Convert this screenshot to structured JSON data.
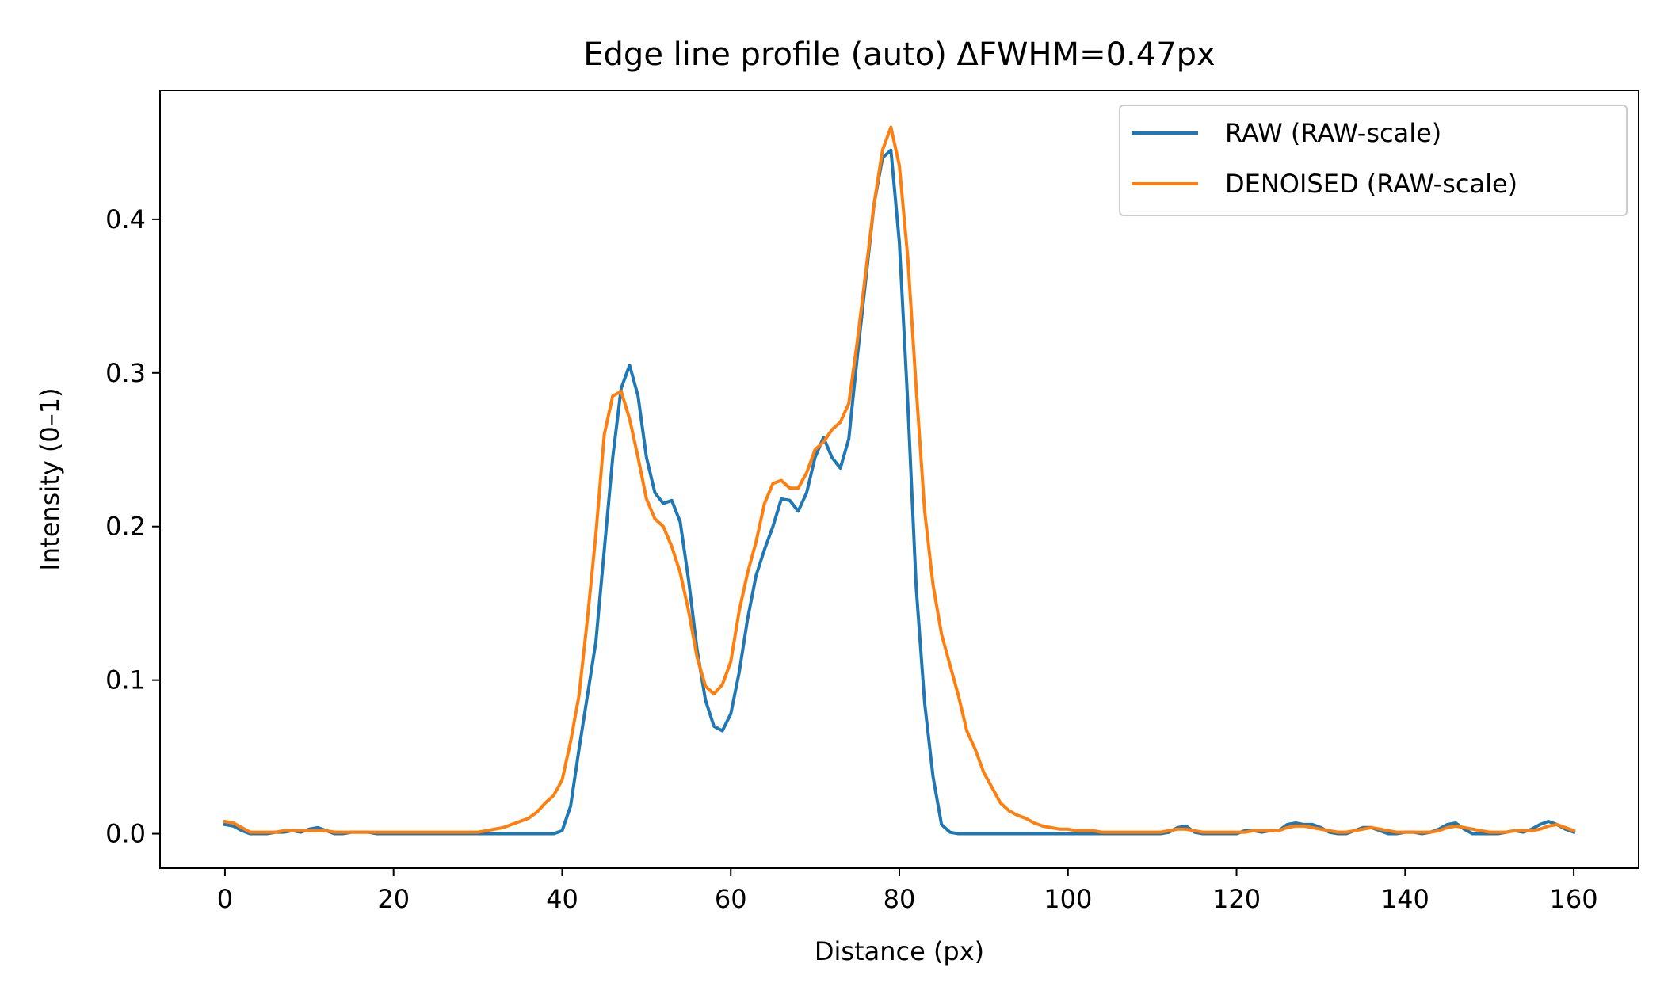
{
  "chart_data": {
    "type": "line",
    "title": "Edge line profile (auto)  ΔFWHM=0.47px",
    "xlabel": "Distance (px)",
    "ylabel": "Intensity (0–1)",
    "xlim": [
      -7.7,
      167.7
    ],
    "ylim": [
      -0.0224,
      0.484
    ],
    "xticks": [
      0,
      20,
      40,
      60,
      80,
      100,
      120,
      140,
      160
    ],
    "yticks": [
      0.0,
      0.1,
      0.2,
      0.3,
      0.4
    ],
    "ytick_labels": [
      "0.0",
      "0.1",
      "0.2",
      "0.3",
      "0.4"
    ],
    "grid": false,
    "legend_position": "top-right",
    "x": [
      0,
      1,
      2,
      3,
      4,
      5,
      6,
      7,
      8,
      9,
      10,
      11,
      12,
      13,
      14,
      15,
      16,
      17,
      18,
      19,
      20,
      21,
      22,
      23,
      24,
      25,
      26,
      27,
      28,
      29,
      30,
      31,
      32,
      33,
      34,
      35,
      36,
      37,
      38,
      39,
      40,
      41,
      42,
      43,
      44,
      45,
      46,
      47,
      48,
      49,
      50,
      51,
      52,
      53,
      54,
      55,
      56,
      57,
      58,
      59,
      60,
      61,
      62,
      63,
      64,
      65,
      66,
      67,
      68,
      69,
      70,
      71,
      72,
      73,
      74,
      75,
      76,
      77,
      78,
      79,
      80,
      81,
      82,
      83,
      84,
      85,
      86,
      87,
      88,
      89,
      90,
      91,
      92,
      93,
      94,
      95,
      96,
      97,
      98,
      99,
      100,
      101,
      102,
      103,
      104,
      105,
      106,
      107,
      108,
      109,
      110,
      111,
      112,
      113,
      114,
      115,
      116,
      117,
      118,
      119,
      120,
      121,
      122,
      123,
      124,
      125,
      126,
      127,
      128,
      129,
      130,
      131,
      132,
      133,
      134,
      135,
      136,
      137,
      138,
      139,
      140,
      141,
      142,
      143,
      144,
      145,
      146,
      147,
      148,
      149,
      150,
      151,
      152,
      153,
      154,
      155,
      156,
      157,
      158,
      159,
      160
    ],
    "series": [
      {
        "name": "RAW (RAW-scale)",
        "color": "#1f77b4",
        "values": [
          0.006,
          0.005,
          0.002,
          0.0,
          0.0,
          0.0,
          0.001,
          0.001,
          0.002,
          0.001,
          0.003,
          0.004,
          0.002,
          0.0,
          0.0,
          0.001,
          0.001,
          0.001,
          0.0,
          0.0,
          0.0,
          0.0,
          0.0,
          0.0,
          0.0,
          0.0,
          0.0,
          0.0,
          0.0,
          0.0,
          0.0,
          0.0,
          0.0,
          0.0,
          0.0,
          0.0,
          0.0,
          0.0,
          0.0,
          0.0,
          0.002,
          0.018,
          0.055,
          0.09,
          0.125,
          0.185,
          0.245,
          0.29,
          0.305,
          0.285,
          0.245,
          0.222,
          0.215,
          0.217,
          0.203,
          0.165,
          0.12,
          0.087,
          0.07,
          0.067,
          0.078,
          0.105,
          0.14,
          0.168,
          0.185,
          0.2,
          0.218,
          0.217,
          0.21,
          0.222,
          0.245,
          0.258,
          0.245,
          0.238,
          0.257,
          0.31,
          0.36,
          0.41,
          0.44,
          0.445,
          0.385,
          0.28,
          0.16,
          0.085,
          0.037,
          0.006,
          0.001,
          0.0,
          0.0,
          0.0,
          0.0,
          0.0,
          0.0,
          0.0,
          0.0,
          0.0,
          0.0,
          0.0,
          0.0,
          0.0,
          0.0,
          0.0,
          0.0,
          0.0,
          0.0,
          0.0,
          0.0,
          0.0,
          0.0,
          0.0,
          0.0,
          0.0,
          0.001,
          0.004,
          0.005,
          0.001,
          0.0,
          0.0,
          0.0,
          0.0,
          0.0,
          0.002,
          0.002,
          0.001,
          0.002,
          0.002,
          0.006,
          0.007,
          0.006,
          0.006,
          0.004,
          0.001,
          0.0,
          0.0,
          0.002,
          0.004,
          0.004,
          0.002,
          0.0,
          0.0,
          0.001,
          0.001,
          0.0,
          0.001,
          0.003,
          0.006,
          0.007,
          0.003,
          0.0,
          0.0,
          0.0,
          0.0,
          0.001,
          0.002,
          0.001,
          0.003,
          0.006,
          0.008,
          0.006,
          0.003,
          0.001
        ]
      },
      {
        "name": "DENOISED (RAW-scale)",
        "color": "#ff7f0e",
        "values": [
          0.008,
          0.007,
          0.004,
          0.001,
          0.001,
          0.001,
          0.001,
          0.002,
          0.002,
          0.002,
          0.002,
          0.002,
          0.002,
          0.001,
          0.001,
          0.001,
          0.001,
          0.001,
          0.001,
          0.001,
          0.001,
          0.001,
          0.001,
          0.001,
          0.001,
          0.001,
          0.001,
          0.001,
          0.001,
          0.001,
          0.001,
          0.002,
          0.003,
          0.004,
          0.006,
          0.008,
          0.01,
          0.014,
          0.02,
          0.025,
          0.035,
          0.06,
          0.09,
          0.14,
          0.195,
          0.26,
          0.285,
          0.288,
          0.27,
          0.245,
          0.218,
          0.205,
          0.2,
          0.187,
          0.17,
          0.145,
          0.115,
          0.096,
          0.091,
          0.097,
          0.112,
          0.145,
          0.17,
          0.19,
          0.215,
          0.228,
          0.23,
          0.225,
          0.225,
          0.235,
          0.25,
          0.255,
          0.263,
          0.268,
          0.28,
          0.32,
          0.365,
          0.41,
          0.445,
          0.46,
          0.435,
          0.375,
          0.29,
          0.21,
          0.162,
          0.13,
          0.11,
          0.09,
          0.067,
          0.055,
          0.04,
          0.03,
          0.02,
          0.015,
          0.012,
          0.01,
          0.007,
          0.005,
          0.004,
          0.003,
          0.003,
          0.002,
          0.002,
          0.002,
          0.001,
          0.001,
          0.001,
          0.001,
          0.001,
          0.001,
          0.001,
          0.001,
          0.002,
          0.003,
          0.003,
          0.002,
          0.001,
          0.001,
          0.001,
          0.001,
          0.001,
          0.001,
          0.002,
          0.002,
          0.002,
          0.002,
          0.004,
          0.005,
          0.005,
          0.004,
          0.003,
          0.002,
          0.001,
          0.001,
          0.002,
          0.003,
          0.004,
          0.003,
          0.002,
          0.001,
          0.001,
          0.001,
          0.001,
          0.001,
          0.002,
          0.004,
          0.005,
          0.004,
          0.003,
          0.002,
          0.001,
          0.001,
          0.001,
          0.002,
          0.002,
          0.002,
          0.003,
          0.005,
          0.006,
          0.004,
          0.002
        ]
      }
    ]
  }
}
